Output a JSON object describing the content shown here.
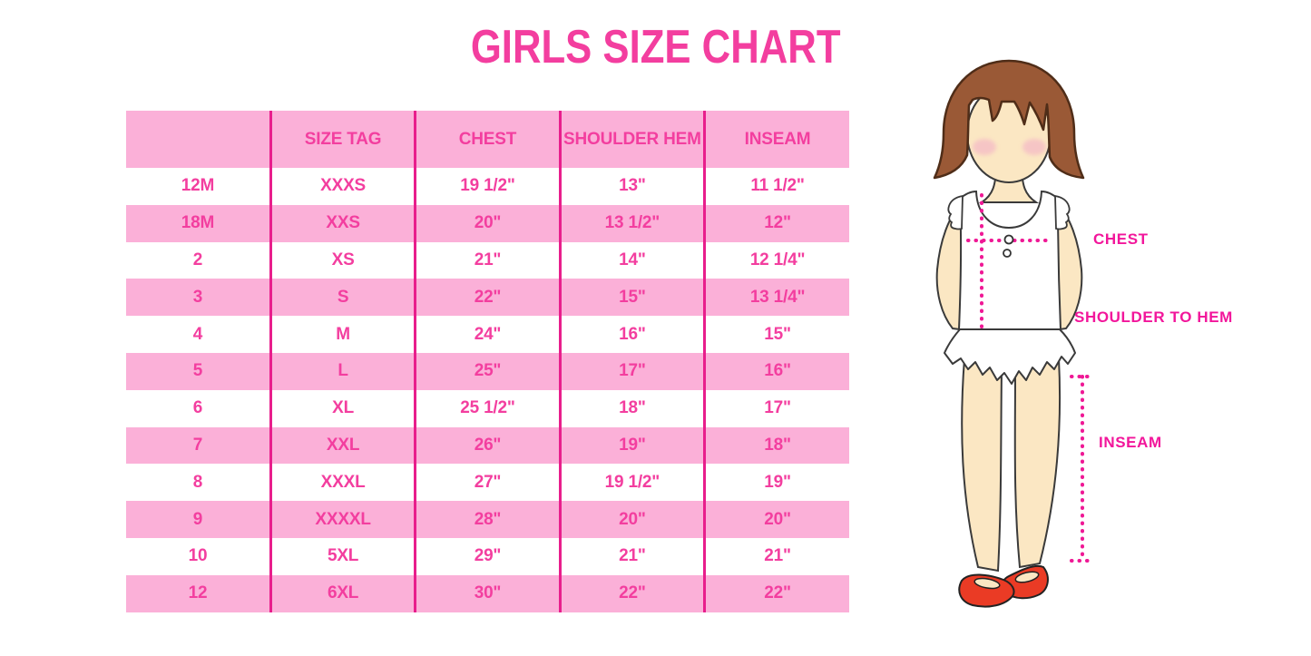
{
  "title": "GIRLS SIZE CHART",
  "chart_data": {
    "type": "table",
    "title": "GIRLS SIZE CHART",
    "columns": [
      "",
      "SIZE TAG",
      "CHEST",
      "SHOULDER HEM",
      "INSEAM"
    ],
    "rows": [
      [
        "12M",
        "XXXS",
        "19 1/2\"",
        "13\"",
        "11 1/2\""
      ],
      [
        "18M",
        "XXS",
        "20\"",
        "13 1/2\"",
        "12\""
      ],
      [
        "2",
        "XS",
        "21\"",
        "14\"",
        "12 1/4\""
      ],
      [
        "3",
        "S",
        "22\"",
        "15\"",
        "13 1/4\""
      ],
      [
        "4",
        "M",
        "24\"",
        "16\"",
        "15\""
      ],
      [
        "5",
        "L",
        "25\"",
        "17\"",
        "16\""
      ],
      [
        "6",
        "XL",
        "25 1/2\"",
        "18\"",
        "17\""
      ],
      [
        "7",
        "XXL",
        "26\"",
        "19\"",
        "18\""
      ],
      [
        "8",
        "XXXL",
        "27\"",
        "19 1/2\"",
        "19\""
      ],
      [
        "9",
        "XXXXL",
        "28\"",
        "20\"",
        "20\""
      ],
      [
        "10",
        "5XL",
        "29\"",
        "21\"",
        "21\""
      ],
      [
        "12",
        "6XL",
        "30\"",
        "22\"",
        "22\""
      ]
    ],
    "row_striping": "alternating white and pink starting white",
    "legend_position": "none",
    "grid": "vertical pink dividers only"
  },
  "figure": {
    "description_labels": {
      "chest": "CHEST",
      "shoulder_to_hem": "SHOULDER TO HEM",
      "inseam": "INSEAM"
    }
  },
  "colors": {
    "accent_pink_text": "#F33E9F",
    "label_magenta": "#F2169B",
    "divider_magenta": "#E81E8C",
    "row_pink_bg": "#FBB0D8",
    "background": "#FFFFFF",
    "hair_brown": "#9A5936",
    "skin": "#FBE7C3",
    "blush_pink": "#F4B8C6",
    "shoe_red": "#EA3B25"
  }
}
